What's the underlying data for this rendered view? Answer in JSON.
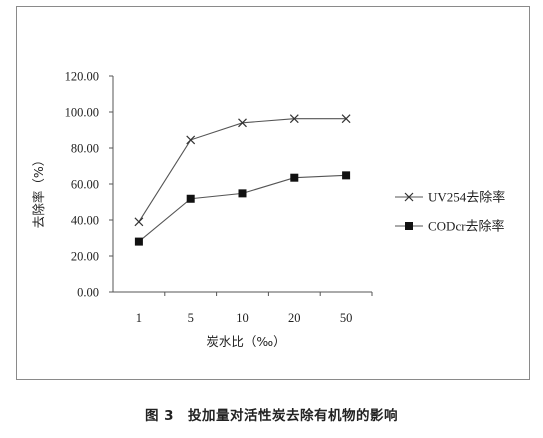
{
  "chart_data": {
    "type": "line",
    "categories": [
      "1",
      "5",
      "10",
      "20",
      "50"
    ],
    "series": [
      {
        "name": "UV254去除率",
        "marker": "x",
        "values": [
          39.0,
          84.5,
          94.0,
          96.3,
          96.3
        ]
      },
      {
        "name": "CODcr去除率",
        "marker": "square",
        "values": [
          28.0,
          51.8,
          54.8,
          63.5,
          64.8
        ]
      }
    ],
    "ylim": [
      0,
      120
    ],
    "yticks": [
      "0.00",
      "20.00",
      "40.00",
      "60.00",
      "80.00",
      "100.00",
      "120.00"
    ],
    "xlabel": "炭水比（‰）",
    "ylabel": "去除率（%）",
    "legend_position": "right",
    "grid": false,
    "line_color": "#555555",
    "marker_color": "#111111"
  },
  "caption": "图 3　投加量对活性炭去除有机物的影响"
}
